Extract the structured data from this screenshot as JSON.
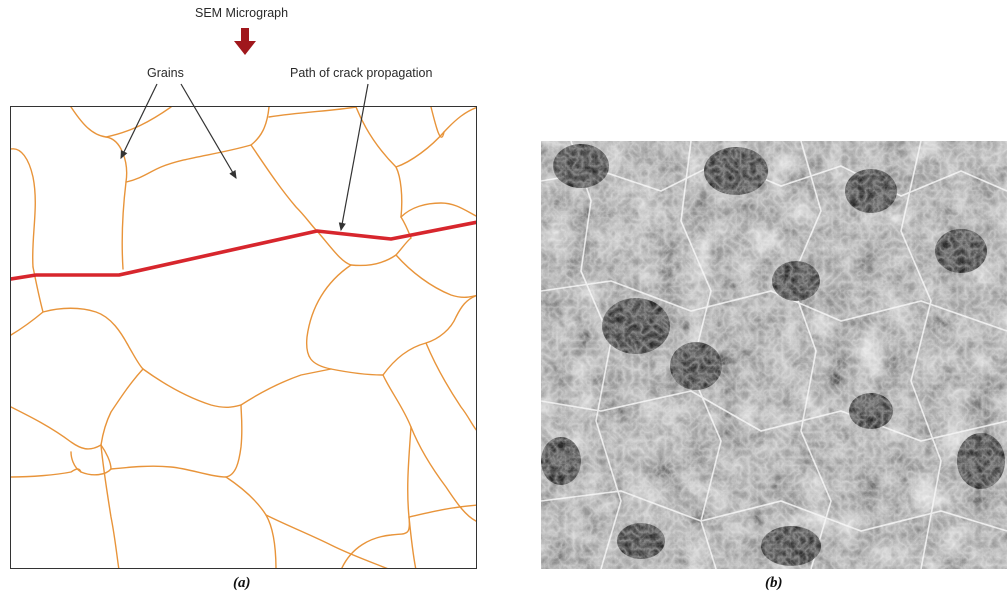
{
  "annotations": {
    "sem_label": "SEM Micrograph",
    "grains_label": "Grains",
    "crack_label": "Path of crack propagation"
  },
  "captions": {
    "a": "(a)",
    "b": "(b)"
  },
  "colors": {
    "grain_boundary": "#e8943a",
    "crack_path": "#d7262d",
    "arrow_down": "#a0171c",
    "leader_line": "#333333",
    "frame": "#333333"
  }
}
